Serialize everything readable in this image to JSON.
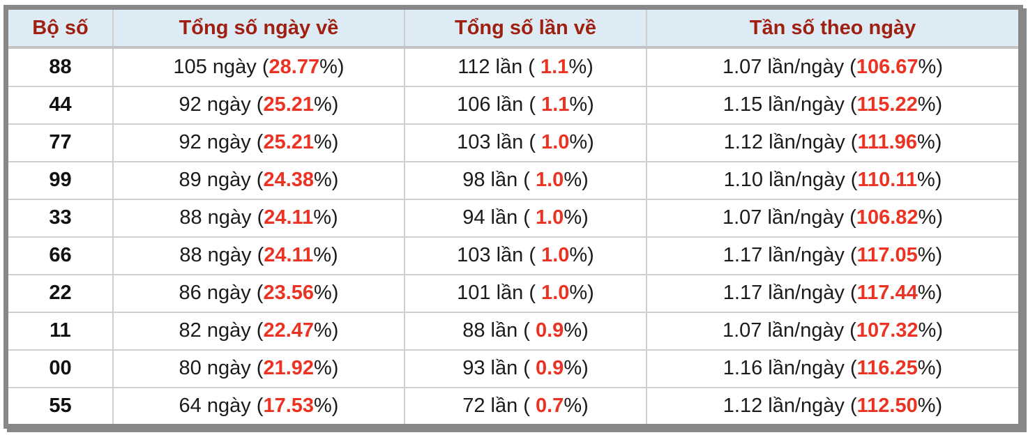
{
  "table": {
    "headers": [
      "Bộ số",
      "Tổng số ngày về",
      "Tổng số lần về",
      "Tần số theo ngày"
    ],
    "rows": [
      {
        "pair": "88",
        "days": {
          "pre": "105 ngày (",
          "value": "28.77",
          "post": "%)"
        },
        "times": {
          "pre": "112 lần ( ",
          "value": "1.1",
          "post": "%)"
        },
        "freq": {
          "pre": "1.07 lần/ngày (",
          "value": "106.67",
          "post": "%)"
        }
      },
      {
        "pair": "44",
        "days": {
          "pre": "92 ngày (",
          "value": "25.21",
          "post": "%)"
        },
        "times": {
          "pre": "106 lần ( ",
          "value": "1.1",
          "post": "%)"
        },
        "freq": {
          "pre": "1.15 lần/ngày (",
          "value": "115.22",
          "post": "%)"
        }
      },
      {
        "pair": "77",
        "days": {
          "pre": "92 ngày (",
          "value": "25.21",
          "post": "%)"
        },
        "times": {
          "pre": "103 lần ( ",
          "value": "1.0",
          "post": "%)"
        },
        "freq": {
          "pre": "1.12 lần/ngày (",
          "value": "111.96",
          "post": "%)"
        }
      },
      {
        "pair": "99",
        "days": {
          "pre": "89 ngày (",
          "value": "24.38",
          "post": "%)"
        },
        "times": {
          "pre": "98 lần ( ",
          "value": "1.0",
          "post": "%)"
        },
        "freq": {
          "pre": "1.10 lần/ngày (",
          "value": "110.11",
          "post": "%)"
        }
      },
      {
        "pair": "33",
        "days": {
          "pre": "88 ngày (",
          "value": "24.11",
          "post": "%)"
        },
        "times": {
          "pre": "94 lần ( ",
          "value": "1.0",
          "post": "%)"
        },
        "freq": {
          "pre": "1.07 lần/ngày (",
          "value": "106.82",
          "post": "%)"
        }
      },
      {
        "pair": "66",
        "days": {
          "pre": "88 ngày (",
          "value": "24.11",
          "post": "%)"
        },
        "times": {
          "pre": "103 lần ( ",
          "value": "1.0",
          "post": "%)"
        },
        "freq": {
          "pre": "1.17 lần/ngày (",
          "value": "117.05",
          "post": "%)"
        }
      },
      {
        "pair": "22",
        "days": {
          "pre": "86 ngày (",
          "value": "23.56",
          "post": "%)"
        },
        "times": {
          "pre": "101 lần ( ",
          "value": "1.0",
          "post": "%)"
        },
        "freq": {
          "pre": "1.17 lần/ngày (",
          "value": "117.44",
          "post": "%)"
        }
      },
      {
        "pair": "11",
        "days": {
          "pre": "82 ngày (",
          "value": "22.47",
          "post": "%)"
        },
        "times": {
          "pre": "88 lần ( ",
          "value": "0.9",
          "post": "%)"
        },
        "freq": {
          "pre": "1.07 lần/ngày (",
          "value": "107.32",
          "post": "%)"
        }
      },
      {
        "pair": "00",
        "days": {
          "pre": "80 ngày (",
          "value": "21.92",
          "post": "%)"
        },
        "times": {
          "pre": "93 lần ( ",
          "value": "0.9",
          "post": "%)"
        },
        "freq": {
          "pre": "1.16 lần/ngày (",
          "value": "116.25",
          "post": "%)"
        }
      },
      {
        "pair": "55",
        "days": {
          "pre": "64 ngày (",
          "value": "17.53",
          "post": "%)"
        },
        "times": {
          "pre": "72 lần ( ",
          "value": "0.7",
          "post": "%)"
        },
        "freq": {
          "pre": "1.12 lần/ngày (",
          "value": "112.50",
          "post": "%)"
        }
      }
    ],
    "colors": {
      "header_bg": "#dcebf4",
      "header_text": "#9f2011",
      "highlight_red": "#ec3323",
      "outer_border": "#878787",
      "cell_border": "#cfcfcf"
    }
  }
}
